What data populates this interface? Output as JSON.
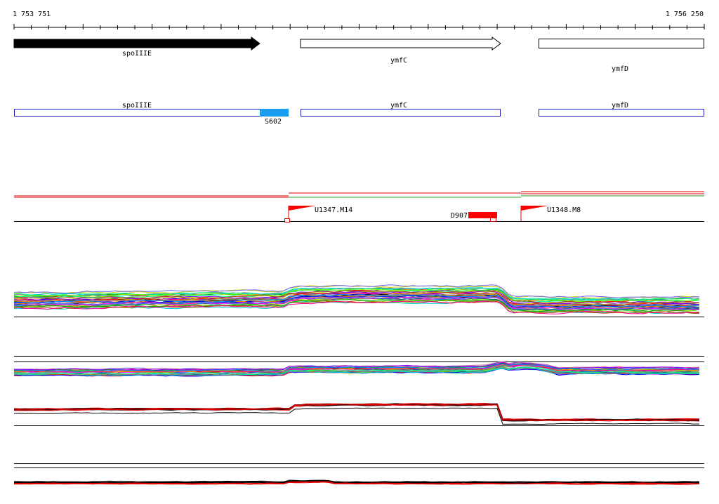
{
  "coords": {
    "start": "1 753 751",
    "end": "1 756 250"
  },
  "genes": [
    {
      "name": "spoIIIE",
      "style": "filled"
    },
    {
      "name": "ymfC",
      "style": "outline"
    },
    {
      "name": "ymfD",
      "style": "outline"
    }
  ],
  "cds_track": [
    {
      "name": "spoIIIE"
    },
    {
      "name": "ymfC"
    },
    {
      "name": "ymfD"
    }
  ],
  "cds_feature": {
    "label": "S602",
    "color": "#1a9cf0"
  },
  "markers": [
    {
      "label": "U1347.M14",
      "color": "#ff0000"
    },
    {
      "label": "U1348.M8",
      "color": "#ff0000"
    },
    {
      "label": "D907",
      "color": "#ff0000"
    }
  ],
  "colors": {
    "gene_outline": "#000000",
    "cds_outline": "#2020c0",
    "track_red": "#e00000",
    "track_green": "#20a020"
  },
  "expression_palette": [
    "#000000",
    "#ff0000",
    "#00aa00",
    "#0000ff",
    "#ff00ff",
    "#00cccc",
    "#cccc00",
    "#ff8800",
    "#8800ff",
    "#888888",
    "#00ff88",
    "#ff0088",
    "#0088ff",
    "#88ff00",
    "#aa4400",
    "#6666ff",
    "#44aa44",
    "#cc6699",
    "#999900",
    "#006666"
  ]
}
